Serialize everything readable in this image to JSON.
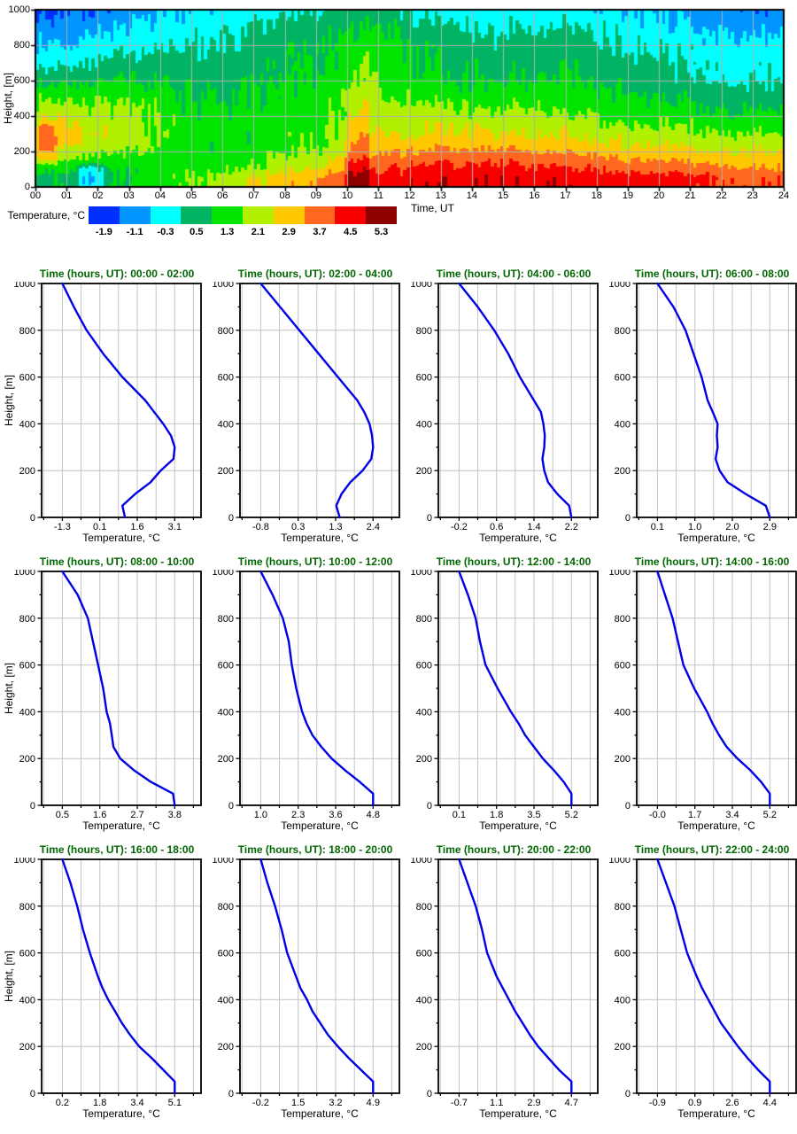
{
  "chart_data": {
    "heatmap": {
      "type": "heatmap",
      "xlabel": "Time, UT",
      "ylabel": "Height, [m]",
      "x_range": [
        0,
        24
      ],
      "y_range": [
        0,
        1000
      ],
      "grid": true,
      "xticks": [
        "00",
        "01",
        "02",
        "03",
        "04",
        "05",
        "06",
        "07",
        "08",
        "09",
        "10",
        "11",
        "12",
        "13",
        "14",
        "15",
        "16",
        "17",
        "18",
        "19",
        "20",
        "21",
        "22",
        "23",
        "24"
      ],
      "yticks": [
        0,
        200,
        400,
        600,
        800,
        1000
      ],
      "colorbar": {
        "label": "Temperature, °C",
        "classes": [
          {
            "label": "-1.9",
            "color": "#0030ff"
          },
          {
            "label": "-1.1",
            "color": "#0095ff"
          },
          {
            "label": "-0.3",
            "color": "#00ffff"
          },
          {
            "label": "0.5",
            "color": "#00b464"
          },
          {
            "label": "1.3",
            "color": "#00e400"
          },
          {
            "label": "2.1",
            "color": "#b0f000"
          },
          {
            "label": "2.9",
            "color": "#ffc800"
          },
          {
            "label": "3.7",
            "color": "#ff681e"
          },
          {
            "label": "4.5",
            "color": "#f80000"
          },
          {
            "label": "5.3",
            "color": "#8c0000"
          }
        ]
      },
      "thresholds": [
        -1.1,
        -0.3,
        0.5,
        1.3,
        2.1,
        2.9,
        3.7,
        4.5,
        5.3
      ],
      "noise_amplitude": 0.32,
      "anomalies": [
        {
          "t0": 0.0,
          "t1": 0.75,
          "h0": 120,
          "h1": 380,
          "dT": 1.0,
          "shape": "flat"
        },
        {
          "t0": 1.3,
          "t1": 2.3,
          "h0": 0,
          "h1": 150,
          "dT": -1.3,
          "shape": "flat"
        },
        {
          "t0": 9.9,
          "t1": 10.75,
          "h0": 0,
          "h1": 770,
          "dT": 1.35,
          "shape": "ramp"
        }
      ],
      "grid_color": "#b0b0b0"
    },
    "profiles": {
      "type": "line",
      "xlabel": "Temperature, °C",
      "ylabel": "Height, [m]",
      "y_range": [
        0,
        1000
      ],
      "yticks": [
        0,
        200,
        400,
        600,
        800,
        1000
      ],
      "line_color": "#0000e6",
      "title_color": "#006600",
      "grid_color": "#c4c4c4",
      "heights": [
        0,
        50,
        100,
        150,
        200,
        250,
        300,
        350,
        400,
        450,
        500,
        600,
        700,
        800,
        900,
        1000
      ],
      "items": [
        {
          "title": "Time (hours, UT): 00:00 - 02:00",
          "time_center": 1,
          "xtick_labels": [
            "-1.3",
            "0.1",
            "1.6",
            "3.1"
          ],
          "temps": [
            1.15,
            1.05,
            1.55,
            2.15,
            2.55,
            3.05,
            3.1,
            2.95,
            2.65,
            2.3,
            1.95,
            1.05,
            0.3,
            -0.35,
            -0.85,
            -1.3
          ]
        },
        {
          "title": "Time (hours, UT): 02:00 - 04:00",
          "time_center": 3,
          "xtick_labels": [
            "-0.8",
            "0.3",
            "1.3",
            "2.4"
          ],
          "temps": [
            1.45,
            1.35,
            1.5,
            1.75,
            2.1,
            2.35,
            2.4,
            2.37,
            2.3,
            2.15,
            1.95,
            1.4,
            0.85,
            0.3,
            -0.25,
            -0.8
          ]
        },
        {
          "title": "Time (hours, UT): 04:00 - 06:00",
          "time_center": 5,
          "xtick_labels": [
            "-0.2",
            "0.6",
            "1.4",
            "2.2"
          ],
          "temps": [
            2.2,
            2.15,
            1.9,
            1.7,
            1.62,
            1.58,
            1.62,
            1.63,
            1.6,
            1.55,
            1.4,
            1.1,
            0.85,
            0.55,
            0.2,
            -0.2
          ]
        },
        {
          "title": "Time (hours, UT): 06:00 - 08:00",
          "time_center": 7,
          "xtick_labels": [
            "0.1",
            "1.0",
            "2.0",
            "2.9"
          ],
          "temps": [
            2.9,
            2.8,
            2.3,
            1.85,
            1.65,
            1.55,
            1.6,
            1.58,
            1.6,
            1.48,
            1.35,
            1.2,
            1.0,
            0.8,
            0.5,
            0.1
          ]
        },
        {
          "title": "Time (hours, UT): 08:00 - 10:00",
          "time_center": 9,
          "xtick_labels": [
            "0.5",
            "1.6",
            "2.7",
            "3.8"
          ],
          "temps": [
            3.8,
            3.75,
            3.1,
            2.6,
            2.2,
            2.0,
            1.95,
            1.9,
            1.8,
            1.75,
            1.7,
            1.55,
            1.4,
            1.25,
            0.95,
            0.5
          ]
        },
        {
          "title": "Time (hours, UT): 10:00 - 12:00",
          "time_center": 11,
          "xtick_labels": [
            "1.0",
            "2.3",
            "3.6",
            "4.8"
          ],
          "temps": [
            4.8,
            4.8,
            4.35,
            3.85,
            3.4,
            3.05,
            2.75,
            2.55,
            2.4,
            2.3,
            2.2,
            2.05,
            1.95,
            1.75,
            1.4,
            1.0
          ]
        },
        {
          "title": "Time (hours, UT): 12:00 - 14:00",
          "time_center": 13,
          "xtick_labels": [
            "0.1",
            "1.8",
            "3.5",
            "5.2"
          ],
          "temps": [
            5.2,
            5.2,
            4.85,
            4.4,
            3.9,
            3.5,
            3.1,
            2.8,
            2.45,
            2.15,
            1.85,
            1.3,
            1.05,
            0.85,
            0.5,
            0.1
          ]
        },
        {
          "title": "Time (hours, UT): 14:00 - 16:00",
          "time_center": 15,
          "xtick_labels": [
            "-0.0",
            "1.7",
            "3.4",
            "5.2"
          ],
          "temps": [
            5.2,
            5.2,
            4.8,
            4.3,
            3.7,
            3.2,
            2.85,
            2.55,
            2.3,
            2.0,
            1.7,
            1.2,
            0.95,
            0.7,
            0.35,
            0.0
          ]
        },
        {
          "title": "Time (hours, UT): 16:00 - 18:00",
          "time_center": 17,
          "xtick_labels": [
            "0.2",
            "1.8",
            "3.4",
            "5.1"
          ],
          "temps": [
            5.1,
            5.1,
            4.6,
            4.1,
            3.55,
            3.15,
            2.8,
            2.5,
            2.2,
            1.95,
            1.75,
            1.4,
            1.1,
            0.85,
            0.55,
            0.2
          ]
        },
        {
          "title": "Time (hours, UT): 18:00 - 20:00",
          "time_center": 19,
          "xtick_labels": [
            "-0.2",
            "1.5",
            "3.2",
            "4.9"
          ],
          "temps": [
            4.9,
            4.9,
            4.35,
            3.8,
            3.3,
            2.85,
            2.5,
            2.15,
            1.9,
            1.6,
            1.4,
            1.0,
            0.75,
            0.45,
            0.1,
            -0.2
          ]
        },
        {
          "title": "Time (hours, UT): 20:00 - 22:00",
          "time_center": 21,
          "xtick_labels": [
            "-0.7",
            "1.1",
            "2.9",
            "4.7"
          ],
          "temps": [
            4.7,
            4.7,
            4.1,
            3.6,
            3.1,
            2.7,
            2.35,
            2.0,
            1.7,
            1.4,
            1.1,
            0.65,
            0.4,
            0.1,
            -0.3,
            -0.7
          ]
        },
        {
          "title": "Time (hours, UT): 22:00 - 24:00",
          "time_center": 23,
          "xtick_labels": [
            "-0.9",
            "0.9",
            "2.6",
            "4.4"
          ],
          "temps": [
            4.4,
            4.4,
            3.85,
            3.35,
            2.9,
            2.5,
            2.1,
            1.8,
            1.5,
            1.2,
            0.95,
            0.5,
            0.2,
            -0.1,
            -0.5,
            -0.9
          ]
        }
      ]
    }
  }
}
